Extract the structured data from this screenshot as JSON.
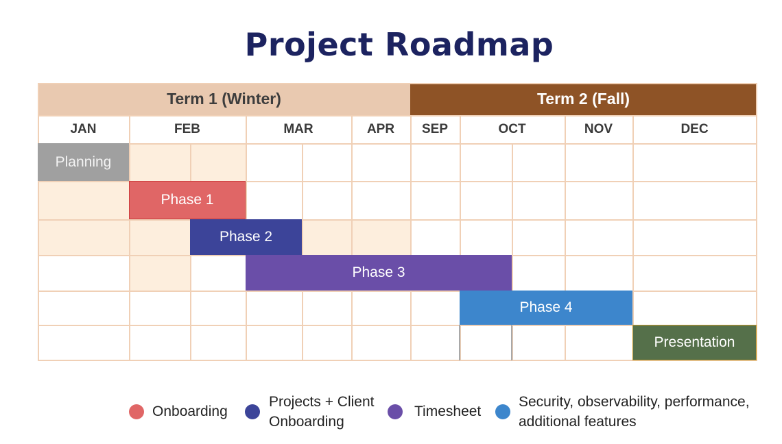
{
  "title": "Project Roadmap",
  "terms": [
    {
      "label": "Term 1 (Winter)",
      "bg": "#e9c9b0",
      "color": "#3d3d3d"
    },
    {
      "label": "Term 2 (Fall)",
      "bg": "#8e5326",
      "color": "#ffffff"
    }
  ],
  "months": [
    "JAN",
    "FEB",
    "MAR",
    "APR",
    "SEP",
    "OCT",
    "NOV",
    "DEC"
  ],
  "bars": [
    {
      "label": "Planning",
      "color": "#a0a0a0"
    },
    {
      "label": "Phase 1",
      "color": "#e06666"
    },
    {
      "label": "Phase 2",
      "color": "#3c4499"
    },
    {
      "label": "Phase 3",
      "color": "#6a4ea8"
    },
    {
      "label": "Phase 4",
      "color": "#3d86cc"
    },
    {
      "label": "Presentation",
      "color": "#55704a"
    }
  ],
  "legend": [
    {
      "label": "Onboarding",
      "color": "#e06666"
    },
    {
      "label": "Projects + Client\nOnboarding",
      "color": "#3c4499"
    },
    {
      "label": "Timesheet",
      "color": "#6a4ea8"
    },
    {
      "label": "Security, observability, performance,\nadditional features",
      "color": "#3d86cc"
    }
  ],
  "colors": {
    "grid": "#f0d0b6",
    "shade": "#fdeedd"
  }
}
